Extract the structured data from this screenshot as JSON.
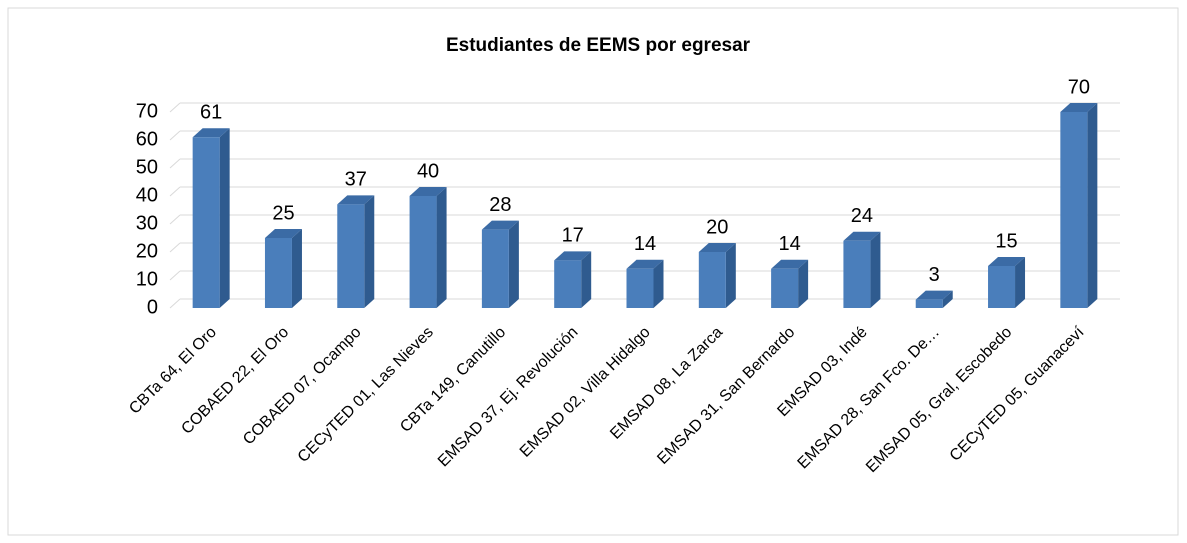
{
  "chart_data": {
    "type": "bar3d",
    "title": "Estudiantes de EEMS por egresar",
    "categories": [
      "CBTa 64, El Oro",
      "COBAED 22, El Oro",
      "COBAED 07, Ocampo",
      "CECyTED 01, Las Nieves",
      "CBTa 149, Canutillo",
      "EMSAD 37, Ej. Revolución",
      "EMSAD 02, Villa Hidalgo",
      "EMSAD 08, La Zarca",
      "EMSAD 31, San Bernardo",
      "EMSAD 03, Indé",
      "EMSAD 28, San Fco. De…",
      "EMSAD 05, Gral, Escobedo",
      "CECyTED 05, Guanaceví"
    ],
    "values": [
      61,
      25,
      37,
      40,
      28,
      17,
      14,
      20,
      14,
      24,
      3,
      15,
      70
    ],
    "color": "#4a7ebb",
    "ylim": [
      0,
      70
    ],
    "yticks": [
      0,
      10,
      20,
      30,
      40,
      50,
      60,
      70
    ],
    "grid": true
  }
}
